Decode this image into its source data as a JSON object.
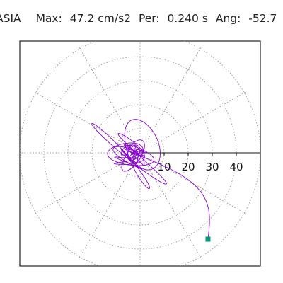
{
  "header": {
    "station": "ASIA",
    "max_label": "Max:",
    "max_value": "47.2 cm/s2",
    "per_label": "Per:",
    "per_value": "0.240 s",
    "ang_label": "Ang:",
    "ang_value": "-52.7"
  },
  "polar": {
    "radius_ticks": [
      "10",
      "20",
      "30",
      "40"
    ],
    "trace_color": "#8a00d4",
    "marker_color": "#0a9a7a",
    "grid_color": "#9a9a9a"
  }
}
